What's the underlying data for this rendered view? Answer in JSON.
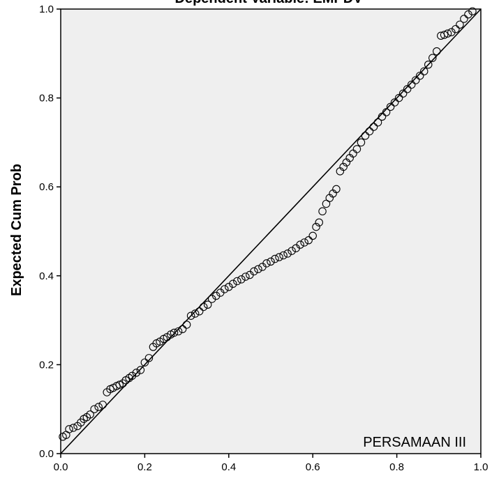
{
  "chart_data": {
    "type": "scatter",
    "title": "Dependent Variable: EMPDV",
    "xlabel": "",
    "ylabel": "Expected Cum Prob",
    "annotation": "PERSAMAAN III",
    "xlim": [
      0,
      1
    ],
    "ylim": [
      0,
      1
    ],
    "x_ticks": [
      "0.0",
      "0.2",
      "0.4",
      "0.6",
      "0.8",
      "1.0"
    ],
    "y_ticks": [
      "0.0",
      "0.2",
      "0.4",
      "0.6",
      "0.8",
      "1.0"
    ],
    "grid": false,
    "reference_line": {
      "from": [
        0,
        0
      ],
      "to": [
        1,
        1
      ]
    },
    "series": [
      {
        "marker": "circle",
        "points": [
          [
            0.005,
            0.038
          ],
          [
            0.013,
            0.042
          ],
          [
            0.02,
            0.055
          ],
          [
            0.03,
            0.058
          ],
          [
            0.04,
            0.062
          ],
          [
            0.048,
            0.07
          ],
          [
            0.055,
            0.078
          ],
          [
            0.062,
            0.082
          ],
          [
            0.07,
            0.088
          ],
          [
            0.08,
            0.1
          ],
          [
            0.09,
            0.105
          ],
          [
            0.1,
            0.11
          ],
          [
            0.11,
            0.138
          ],
          [
            0.118,
            0.145
          ],
          [
            0.125,
            0.148
          ],
          [
            0.133,
            0.152
          ],
          [
            0.14,
            0.155
          ],
          [
            0.148,
            0.158
          ],
          [
            0.155,
            0.165
          ],
          [
            0.163,
            0.17
          ],
          [
            0.17,
            0.175
          ],
          [
            0.18,
            0.182
          ],
          [
            0.19,
            0.188
          ],
          [
            0.2,
            0.205
          ],
          [
            0.21,
            0.215
          ],
          [
            0.22,
            0.24
          ],
          [
            0.228,
            0.248
          ],
          [
            0.236,
            0.252
          ],
          [
            0.245,
            0.258
          ],
          [
            0.253,
            0.262
          ],
          [
            0.262,
            0.268
          ],
          [
            0.27,
            0.272
          ],
          [
            0.28,
            0.275
          ],
          [
            0.29,
            0.28
          ],
          [
            0.3,
            0.29
          ],
          [
            0.31,
            0.31
          ],
          [
            0.32,
            0.315
          ],
          [
            0.33,
            0.32
          ],
          [
            0.34,
            0.33
          ],
          [
            0.35,
            0.335
          ],
          [
            0.36,
            0.348
          ],
          [
            0.37,
            0.355
          ],
          [
            0.38,
            0.362
          ],
          [
            0.39,
            0.37
          ],
          [
            0.4,
            0.375
          ],
          [
            0.41,
            0.382
          ],
          [
            0.42,
            0.388
          ],
          [
            0.43,
            0.392
          ],
          [
            0.44,
            0.398
          ],
          [
            0.45,
            0.402
          ],
          [
            0.46,
            0.41
          ],
          [
            0.47,
            0.415
          ],
          [
            0.48,
            0.42
          ],
          [
            0.49,
            0.428
          ],
          [
            0.5,
            0.432
          ],
          [
            0.51,
            0.438
          ],
          [
            0.52,
            0.442
          ],
          [
            0.53,
            0.446
          ],
          [
            0.54,
            0.45
          ],
          [
            0.55,
            0.456
          ],
          [
            0.56,
            0.462
          ],
          [
            0.57,
            0.47
          ],
          [
            0.58,
            0.475
          ],
          [
            0.59,
            0.48
          ],
          [
            0.6,
            0.49
          ],
          [
            0.608,
            0.51
          ],
          [
            0.615,
            0.52
          ],
          [
            0.623,
            0.545
          ],
          [
            0.632,
            0.562
          ],
          [
            0.64,
            0.575
          ],
          [
            0.648,
            0.585
          ],
          [
            0.656,
            0.595
          ],
          [
            0.665,
            0.635
          ],
          [
            0.673,
            0.645
          ],
          [
            0.68,
            0.655
          ],
          [
            0.688,
            0.665
          ],
          [
            0.696,
            0.675
          ],
          [
            0.705,
            0.685
          ],
          [
            0.715,
            0.7
          ],
          [
            0.725,
            0.715
          ],
          [
            0.735,
            0.725
          ],
          [
            0.745,
            0.735
          ],
          [
            0.755,
            0.745
          ],
          [
            0.765,
            0.758
          ],
          [
            0.775,
            0.768
          ],
          [
            0.785,
            0.78
          ],
          [
            0.795,
            0.79
          ],
          [
            0.805,
            0.8
          ],
          [
            0.815,
            0.81
          ],
          [
            0.825,
            0.82
          ],
          [
            0.835,
            0.83
          ],
          [
            0.845,
            0.84
          ],
          [
            0.855,
            0.85
          ],
          [
            0.865,
            0.86
          ],
          [
            0.875,
            0.875
          ],
          [
            0.885,
            0.89
          ],
          [
            0.895,
            0.905
          ],
          [
            0.905,
            0.94
          ],
          [
            0.913,
            0.942
          ],
          [
            0.921,
            0.945
          ],
          [
            0.93,
            0.948
          ],
          [
            0.94,
            0.955
          ],
          [
            0.95,
            0.965
          ],
          [
            0.96,
            0.978
          ],
          [
            0.97,
            0.988
          ],
          [
            0.98,
            0.995
          ]
        ]
      }
    ]
  }
}
